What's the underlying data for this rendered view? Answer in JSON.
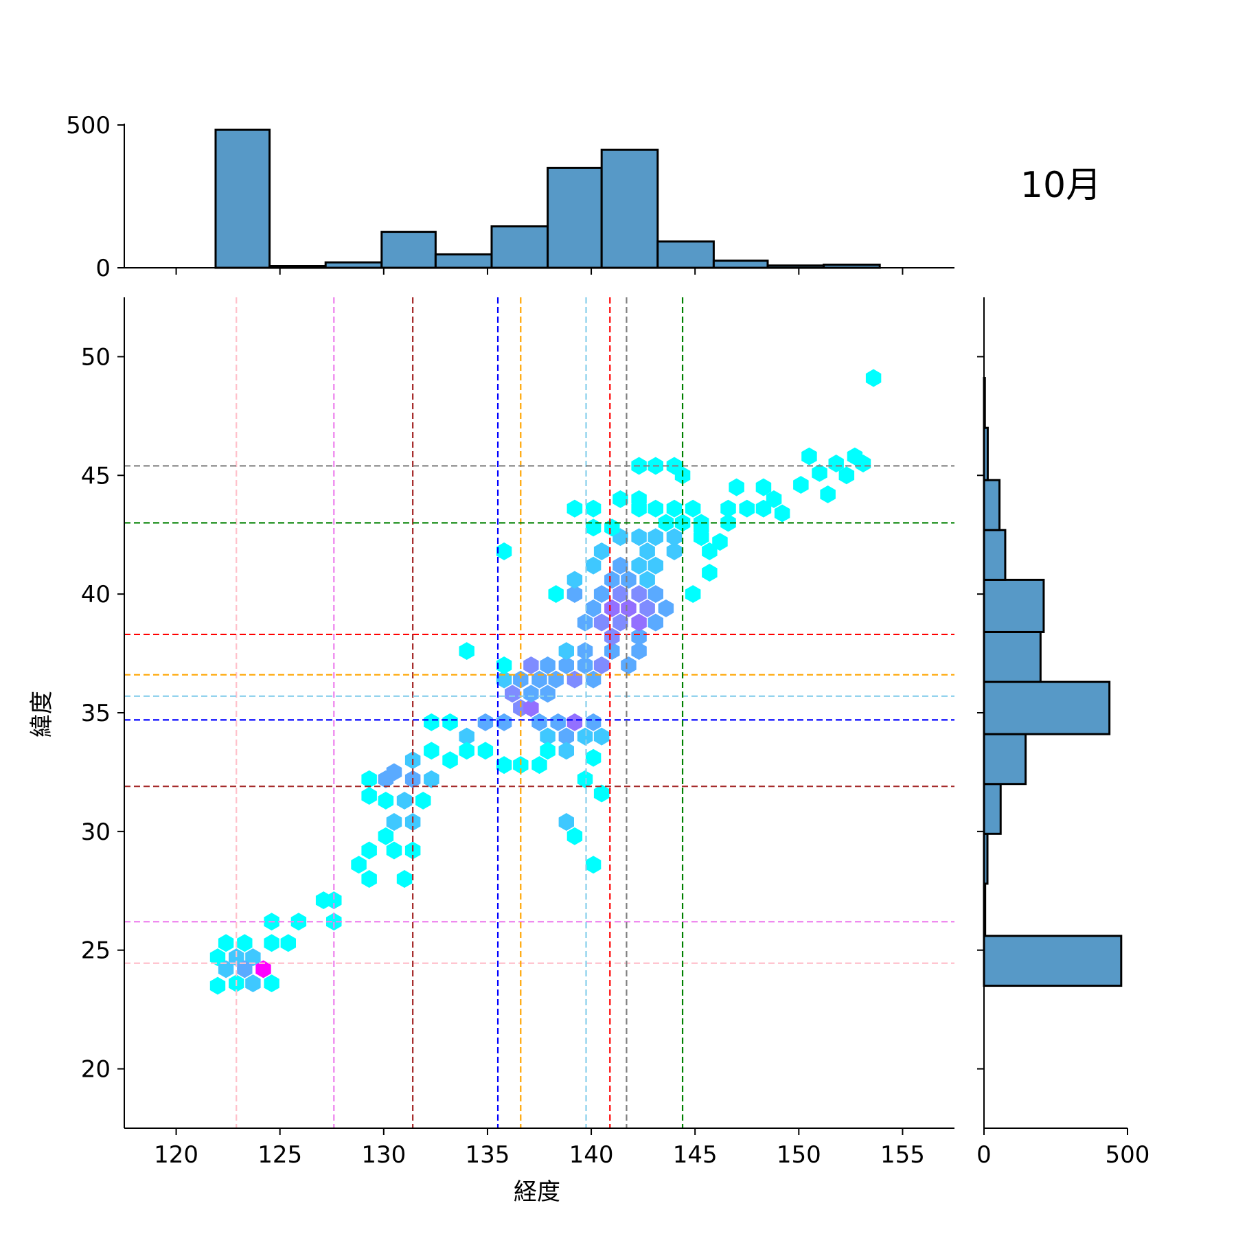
{
  "chart_data": {
    "type": "hexbin",
    "title": "10月",
    "xlabel": "経度",
    "ylabel": "緯度",
    "xlim": [
      117.5,
      157.5
    ],
    "ylim": [
      17.5,
      52.5
    ],
    "xticks": [
      "120",
      "125",
      "130",
      "135",
      "140",
      "145",
      "150",
      "155"
    ],
    "yticks": [
      "20",
      "25",
      "30",
      "35",
      "40",
      "45",
      "50"
    ],
    "hist_x": {
      "ticks": [
        "0",
        "500"
      ],
      "bins": [
        {
          "x0": 121.9,
          "x1": 124.5,
          "count": 483
        },
        {
          "x0": 124.5,
          "x1": 127.2,
          "count": 6
        },
        {
          "x0": 127.2,
          "x1": 129.9,
          "count": 19
        },
        {
          "x0": 129.9,
          "x1": 132.5,
          "count": 126
        },
        {
          "x0": 132.5,
          "x1": 135.2,
          "count": 47
        },
        {
          "x0": 135.2,
          "x1": 137.9,
          "count": 145
        },
        {
          "x0": 137.9,
          "x1": 140.5,
          "count": 350
        },
        {
          "x0": 140.5,
          "x1": 143.2,
          "count": 413
        },
        {
          "x0": 143.2,
          "x1": 145.9,
          "count": 92
        },
        {
          "x0": 145.9,
          "x1": 148.5,
          "count": 25
        },
        {
          "x0": 148.5,
          "x1": 151.2,
          "count": 8
        },
        {
          "x0": 151.2,
          "x1": 153.9,
          "count": 11
        }
      ]
    },
    "hist_y": {
      "ticks": [
        "0",
        "500"
      ],
      "bins": [
        {
          "y0": 23.5,
          "y1": 25.6,
          "count": 478
        },
        {
          "y0": 25.6,
          "y1": 27.8,
          "count": 4
        },
        {
          "y0": 27.8,
          "y1": 29.9,
          "count": 12
        },
        {
          "y0": 29.9,
          "y1": 32.0,
          "count": 58
        },
        {
          "y0": 32.0,
          "y1": 34.1,
          "count": 145
        },
        {
          "y0": 34.1,
          "y1": 36.3,
          "count": 437
        },
        {
          "y0": 36.3,
          "y1": 38.4,
          "count": 197
        },
        {
          "y0": 38.4,
          "y1": 40.6,
          "count": 208
        },
        {
          "y0": 40.6,
          "y1": 42.7,
          "count": 74
        },
        {
          "y0": 42.7,
          "y1": 44.8,
          "count": 54
        },
        {
          "y0": 44.8,
          "y1": 47.0,
          "count": 13
        },
        {
          "y0": 47.0,
          "y1": 49.1,
          "count": 3
        }
      ]
    },
    "ref_lines": [
      {
        "color": "#ffc0cb",
        "lon": 122.9,
        "lat": 24.45
      },
      {
        "color": "#ee82ee",
        "lon": 127.6,
        "lat": 26.2
      },
      {
        "color": "#a52a2a",
        "lon": 131.4,
        "lat": 31.9
      },
      {
        "color": "#0000ff",
        "lon": 135.5,
        "lat": 34.7
      },
      {
        "color": "#ffa500",
        "lon": 136.6,
        "lat": 36.6
      },
      {
        "color": "#87ceeb",
        "lon": 139.75,
        "lat": 35.7
      },
      {
        "color": "#ff0000",
        "lon": 140.9,
        "lat": 38.3
      },
      {
        "color": "#808080",
        "lon": 141.7,
        "lat": 45.4
      },
      {
        "color": "#008000",
        "lon": 144.4,
        "lat": 43.0
      }
    ],
    "hex_points": [
      [
        122.4,
        25.3,
        1
      ],
      [
        123.3,
        25.3,
        1
      ],
      [
        122.0,
        24.7,
        1
      ],
      [
        122.9,
        24.7,
        2
      ],
      [
        123.7,
        24.7,
        2
      ],
      [
        124.6,
        25.3,
        1
      ],
      [
        125.4,
        25.3,
        1
      ],
      [
        122.4,
        24.2,
        2
      ],
      [
        123.3,
        24.2,
        3
      ],
      [
        124.2,
        24.2,
        6
      ],
      [
        122.0,
        23.5,
        1
      ],
      [
        122.9,
        23.6,
        1
      ],
      [
        123.7,
        23.6,
        2
      ],
      [
        124.6,
        23.6,
        1
      ],
      [
        124.6,
        26.2,
        1
      ],
      [
        125.9,
        26.2,
        1
      ],
      [
        127.6,
        26.2,
        1
      ],
      [
        127.1,
        27.1,
        1
      ],
      [
        127.6,
        27.1,
        1
      ],
      [
        129.3,
        28.0,
        1
      ],
      [
        131.0,
        28.0,
        1
      ],
      [
        128.8,
        28.6,
        1
      ],
      [
        129.3,
        29.2,
        1
      ],
      [
        130.5,
        29.2,
        1
      ],
      [
        131.4,
        29.2,
        1
      ],
      [
        130.1,
        29.8,
        1
      ],
      [
        130.5,
        30.4,
        2
      ],
      [
        131.4,
        30.4,
        2
      ],
      [
        130.1,
        31.3,
        1
      ],
      [
        131.0,
        31.3,
        2
      ],
      [
        131.9,
        31.3,
        1
      ],
      [
        129.3,
        31.5,
        1
      ],
      [
        129.3,
        32.2,
        1
      ],
      [
        130.1,
        32.2,
        3
      ],
      [
        130.5,
        32.5,
        3
      ],
      [
        131.4,
        32.2,
        3
      ],
      [
        132.3,
        32.2,
        2
      ],
      [
        131.4,
        33.0,
        2
      ],
      [
        132.3,
        33.4,
        1
      ],
      [
        133.2,
        33.0,
        1
      ],
      [
        132.3,
        34.6,
        1
      ],
      [
        133.2,
        34.6,
        1
      ],
      [
        134.0,
        34.0,
        2
      ],
      [
        134.0,
        33.4,
        1
      ],
      [
        134.9,
        33.4,
        1
      ],
      [
        134.9,
        34.6,
        3
      ],
      [
        135.8,
        34.6,
        3
      ],
      [
        136.6,
        35.2,
        4
      ],
      [
        137.1,
        35.2,
        5
      ],
      [
        136.2,
        35.8,
        4
      ],
      [
        137.1,
        35.8,
        3
      ],
      [
        137.9,
        35.8,
        3
      ],
      [
        135.8,
        36.4,
        2
      ],
      [
        136.6,
        36.4,
        3
      ],
      [
        137.5,
        36.4,
        3
      ],
      [
        138.3,
        36.4,
        3
      ],
      [
        139.2,
        36.4,
        4
      ],
      [
        140.1,
        36.4,
        3
      ],
      [
        137.1,
        37.0,
        4
      ],
      [
        137.9,
        37.0,
        3
      ],
      [
        138.8,
        37.0,
        3
      ],
      [
        139.7,
        37.0,
        3
      ],
      [
        134.0,
        37.6,
        1
      ],
      [
        135.8,
        37.0,
        1
      ],
      [
        137.5,
        34.6,
        3
      ],
      [
        138.4,
        34.6,
        3
      ],
      [
        139.2,
        34.6,
        5
      ],
      [
        140.1,
        34.6,
        3
      ],
      [
        137.9,
        34.0,
        2
      ],
      [
        138.8,
        34.0,
        3
      ],
      [
        139.7,
        34.0,
        2
      ],
      [
        140.5,
        34.0,
        2
      ],
      [
        137.9,
        33.4,
        1
      ],
      [
        138.8,
        33.4,
        2
      ],
      [
        140.1,
        33.1,
        1
      ],
      [
        137.5,
        32.8,
        1
      ],
      [
        139.7,
        32.2,
        1
      ],
      [
        136.6,
        32.8,
        1
      ],
      [
        135.8,
        32.8,
        1
      ],
      [
        139.2,
        29.8,
        1
      ],
      [
        138.8,
        30.4,
        2
      ],
      [
        140.1,
        28.6,
        1
      ],
      [
        140.5,
        31.6,
        1
      ],
      [
        138.8,
        37.6,
        2
      ],
      [
        139.7,
        37.6,
        3
      ],
      [
        140.5,
        37.0,
        4
      ],
      [
        141.0,
        37.6,
        3
      ],
      [
        141.8,
        37.0,
        3
      ],
      [
        142.3,
        37.6,
        3
      ],
      [
        141.0,
        38.2,
        4
      ],
      [
        142.3,
        38.2,
        3
      ],
      [
        139.7,
        38.8,
        3
      ],
      [
        140.5,
        38.8,
        4
      ],
      [
        141.4,
        38.8,
        4
      ],
      [
        142.3,
        38.8,
        5
      ],
      [
        143.1,
        38.8,
        3
      ],
      [
        140.1,
        39.4,
        3
      ],
      [
        141.0,
        39.4,
        5
      ],
      [
        141.8,
        39.4,
        5
      ],
      [
        142.7,
        39.4,
        4
      ],
      [
        143.6,
        39.4,
        3
      ],
      [
        140.5,
        40.0,
        3
      ],
      [
        141.4,
        40.0,
        4
      ],
      [
        142.3,
        40.0,
        4
      ],
      [
        143.1,
        40.0,
        3
      ],
      [
        139.2,
        40.0,
        3
      ],
      [
        138.3,
        40.0,
        1
      ],
      [
        139.2,
        40.6,
        2
      ],
      [
        141.0,
        40.6,
        3
      ],
      [
        141.8,
        40.6,
        3
      ],
      [
        142.7,
        40.6,
        2
      ],
      [
        140.1,
        41.2,
        2
      ],
      [
        141.4,
        41.2,
        3
      ],
      [
        142.3,
        41.2,
        2
      ],
      [
        143.1,
        41.2,
        2
      ],
      [
        144.0,
        41.8,
        2
      ],
      [
        142.7,
        41.8,
        2
      ],
      [
        140.5,
        41.8,
        2
      ],
      [
        141.4,
        42.4,
        2
      ],
      [
        142.3,
        42.4,
        2
      ],
      [
        143.1,
        42.4,
        2
      ],
      [
        144.0,
        42.4,
        2
      ],
      [
        145.3,
        42.4,
        1
      ],
      [
        146.2,
        42.2,
        1
      ],
      [
        140.1,
        42.8,
        1
      ],
      [
        141.0,
        42.8,
        1
      ],
      [
        143.6,
        43.0,
        1
      ],
      [
        144.4,
        43.0,
        1
      ],
      [
        145.3,
        43.0,
        1
      ],
      [
        146.6,
        43.0,
        1
      ],
      [
        142.3,
        43.6,
        1
      ],
      [
        143.1,
        43.6,
        1
      ],
      [
        144.0,
        43.6,
        1
      ],
      [
        144.9,
        43.6,
        1
      ],
      [
        146.6,
        43.6,
        1
      ],
      [
        147.5,
        43.6,
        1
      ],
      [
        148.3,
        43.6,
        1
      ],
      [
        139.2,
        43.6,
        1
      ],
      [
        140.1,
        43.6,
        1
      ],
      [
        141.4,
        44.0,
        1
      ],
      [
        142.3,
        44.0,
        1
      ],
      [
        147.0,
        44.5,
        1
      ],
      [
        148.3,
        44.5,
        1
      ],
      [
        142.3,
        45.4,
        1
      ],
      [
        143.1,
        45.4,
        1
      ],
      [
        144.0,
        45.4,
        1
      ],
      [
        144.4,
        45.0,
        1
      ],
      [
        144.9,
        40.0,
        1
      ],
      [
        145.7,
        40.9,
        1
      ],
      [
        145.7,
        41.8,
        1
      ],
      [
        145.3,
        42.8,
        1
      ],
      [
        148.8,
        44.0,
        1
      ],
      [
        149.2,
        43.4,
        1
      ],
      [
        150.1,
        44.6,
        1
      ],
      [
        150.5,
        45.8,
        1
      ],
      [
        151.0,
        45.1,
        1
      ],
      [
        151.4,
        44.2,
        1
      ],
      [
        151.8,
        45.5,
        1
      ],
      [
        152.3,
        45.0,
        1
      ],
      [
        152.7,
        45.8,
        1
      ],
      [
        153.1,
        45.5,
        1
      ],
      [
        153.6,
        49.1,
        1
      ],
      [
        135.8,
        41.8,
        1
      ],
      [
        139.2,
        43.6,
        1
      ]
    ]
  }
}
